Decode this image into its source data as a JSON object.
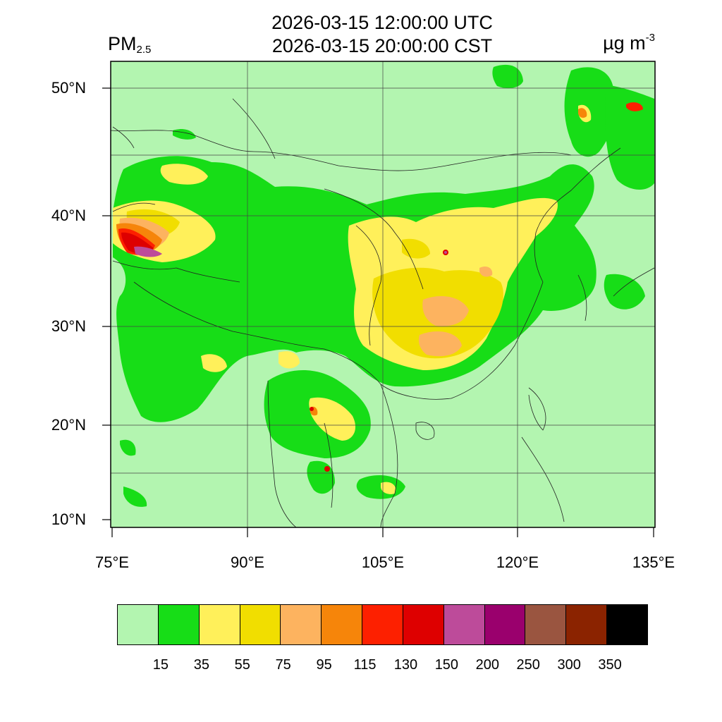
{
  "title": {
    "line1": "2026-03-15 12:00:00 UTC",
    "line2": "2026-03-15 20:00:00 CST"
  },
  "variable": {
    "name": "PM",
    "subscript": "2.5"
  },
  "units": {
    "base": "µg m",
    "exponent": "-3"
  },
  "axes": {
    "lat_labels": [
      "50°N",
      "40°N",
      "30°N",
      "20°N",
      "10°N"
    ],
    "lon_labels": [
      "75°E",
      "90°E",
      "105°E",
      "120°E",
      "135°E"
    ]
  },
  "colorbar": {
    "colors": [
      "#b3f5b0",
      "#17dd17",
      "#fff05a",
      "#f1de00",
      "#fdb35f",
      "#f6850a",
      "#fd2000",
      "#de0000",
      "#bd4b9a",
      "#9a006d",
      "#9a5540",
      "#8b2300",
      "#000000"
    ],
    "ticks": [
      "15",
      "35",
      "55",
      "75",
      "95",
      "115",
      "130",
      "150",
      "200",
      "250",
      "300",
      "350"
    ]
  },
  "map_colors": {
    "background": "#b3f5b0",
    "level1": "#17dd17",
    "level2": "#fff05a",
    "level3": "#f1de00",
    "level4": "#fdb35f",
    "level5": "#f6850a",
    "level6": "#fd2000",
    "level7": "#de0000",
    "level8": "#bd4b9a",
    "level9": "#9a006d"
  }
}
